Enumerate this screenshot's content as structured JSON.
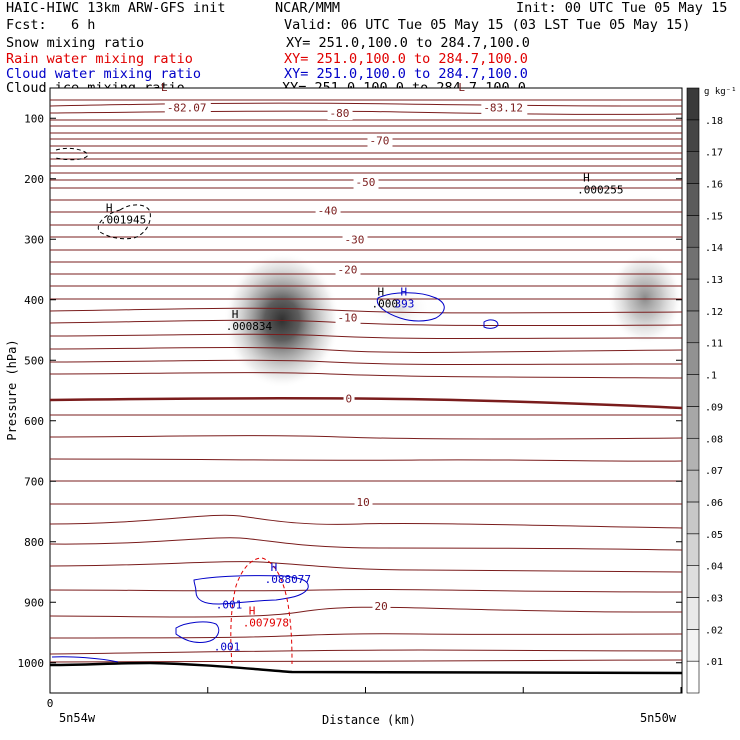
{
  "header": {
    "title": "HAIC-HIWC 13km ARW-GFS init",
    "org": "NCAR/MMM",
    "init": "Init: 00 UTC Tue 05 May 15",
    "fcst": "Fcst:   6 h",
    "valid": "Valid: 06 UTC Tue 05 May 15 (03 LST Tue 05 May 15)",
    "rows": [
      {
        "label": "Snow mixing ratio",
        "xy": "XY= 251.0,100.0 to 284.7,100.0",
        "color": "#000000"
      },
      {
        "label": "Rain water mixing ratio",
        "xy": "XY= 251.0,100.0 to 284.7,100.0",
        "color": "#e00000"
      },
      {
        "label": "Cloud water mixing ratio",
        "xy": "XY= 251.0,100.0 to 284.7,100.0",
        "color": "#0000c8"
      },
      {
        "label": "Cloud ice mixing ratio",
        "xy": "XY= 251.0,100.0 to 284.7,100.0",
        "color": "#000000"
      }
    ]
  },
  "chart_data": {
    "type": "heatmap",
    "xlabel": "Distance (km)",
    "ylabel": "Pressure (hPa)",
    "x_ticks": [
      "0",
      "5n54w",
      "5n50w"
    ],
    "y_ticks": [
      100,
      200,
      300,
      400,
      500,
      600,
      700,
      800,
      900,
      1000
    ],
    "ylim": [
      1050,
      50
    ],
    "xlim": [
      0,
      633
    ],
    "y_scale": "linear",
    "colorbar": {
      "unit": "g kg⁻¹",
      "levels": [
        ".01",
        ".02",
        ".03",
        ".04",
        ".05",
        ".06",
        ".07",
        ".08",
        ".09",
        ".1",
        ".11",
        ".12",
        ".13",
        ".14",
        ".15",
        ".16",
        ".17",
        ".18"
      ],
      "low_color": "#ffffff",
      "high_color": "#3a3a3a"
    },
    "snow_maxima": [
      {
        "x": 232,
        "p": 430,
        "value": 0.18
      },
      {
        "x": 590,
        "p": 400,
        "value": 0.12
      },
      {
        "x": 350,
        "p": 410,
        "value": 0.04
      }
    ],
    "temperature_labels": [
      {
        "text": "-82.07",
        "x": 117,
        "p": 89
      },
      {
        "text": "-80",
        "x": 280,
        "p": 98
      },
      {
        "text": "-83.12",
        "x": 434,
        "p": 89
      },
      {
        "text": "-70",
        "x": 320,
        "p": 143
      },
      {
        "text": "-50",
        "x": 306,
        "p": 212
      },
      {
        "text": "-40",
        "x": 268,
        "p": 259
      },
      {
        "text": "-30",
        "x": 295,
        "p": 307
      },
      {
        "text": "-20",
        "x": 288,
        "p": 357
      },
      {
        "text": "-10",
        "x": 288,
        "p": 436
      },
      {
        "text": "0",
        "x": 296,
        "p": 570
      },
      {
        "text": "10",
        "x": 307,
        "p": 741
      },
      {
        "text": "20",
        "x": 325,
        "p": 913
      }
    ],
    "annotations": [
      {
        "mark": "L",
        "text": "",
        "x": 105,
        "p": 75,
        "series": "temperature"
      },
      {
        "mark": "L",
        "text": "",
        "x": 403,
        "p": 75,
        "series": "temperature"
      },
      {
        "mark": "H",
        "text": ".001945",
        "x": 50,
        "p": 274,
        "series": "ice"
      },
      {
        "mark": "H",
        "text": ".000255",
        "x": 528,
        "p": 224,
        "series": "ice"
      },
      {
        "mark": "H",
        "text": ".000834",
        "x": 176,
        "p": 450,
        "series": "ice"
      },
      {
        "mark": "H",
        "text": ".000",
        "x": 322,
        "p": 413,
        "series": "ice"
      },
      {
        "mark": "H",
        "text": "393",
        "x": 345,
        "p": 413,
        "series": "water"
      },
      {
        "mark": "H",
        "text": ".088077",
        "x": 215,
        "p": 868,
        "series": "water"
      },
      {
        "mark": "",
        "text": ".001",
        "x": 166,
        "p": 910,
        "series": "water"
      },
      {
        "mark": "H",
        "text": ".007978",
        "x": 193,
        "p": 940,
        "series": "rain"
      },
      {
        "mark": "",
        "text": ".001",
        "x": 164,
        "p": 980,
        "series": "water"
      }
    ]
  }
}
